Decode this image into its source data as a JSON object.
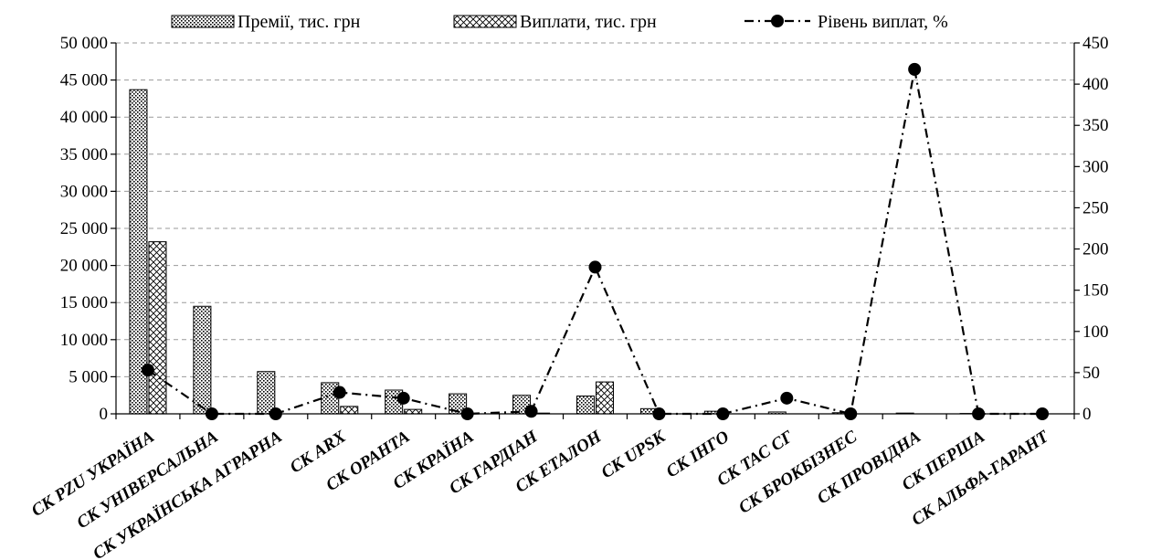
{
  "chart_data": {
    "type": "bar",
    "categories": [
      "СК PZU УКРАЇНА",
      "СК УНІВЕРСАЛЬНА",
      "СК УКРАЇНСЬКА АГРАРНА",
      "СК ARX",
      "СК ОРАНТА",
      "СК КРАЇНА",
      "СК ГАРДІАН",
      "СК ЕТАЛОН",
      "СК UPSK",
      "СК ІНГО",
      "СК ТАС СГ",
      "СК БРОКБІЗНЕС",
      "СК ПРОВІДНА",
      "СК ПЕРША",
      "СК АЛЬФА-ГАРАНТ"
    ],
    "series": [
      {
        "name": "Премії, тис. грн",
        "kind": "bar",
        "axis": "left",
        "values": [
          43700,
          14500,
          5700,
          4200,
          3200,
          2700,
          2500,
          2400,
          700,
          350,
          250,
          150,
          100,
          50,
          0
        ]
      },
      {
        "name": "Виплати, тис. грн",
        "kind": "bar",
        "axis": "left",
        "values": [
          23200,
          0,
          0,
          1000,
          600,
          0,
          100,
          4300,
          0,
          0,
          0,
          0,
          0,
          0,
          0
        ]
      },
      {
        "name": "Рівень виплат, %",
        "kind": "line",
        "axis": "right",
        "values": [
          53,
          0,
          0,
          26,
          19,
          0,
          3,
          178,
          0,
          0,
          19,
          0,
          418,
          0,
          0
        ]
      }
    ],
    "ylim_left": [
      0,
      50000
    ],
    "yticks_left": [
      "0",
      "5 000",
      "10 000",
      "15 000",
      "20 000",
      "25 000",
      "30 000",
      "35 000",
      "40 000",
      "45 000",
      "50 000"
    ],
    "ylim_right": [
      0,
      450
    ],
    "yticks_right": [
      "0",
      "50",
      "100",
      "150",
      "200",
      "250",
      "300",
      "350",
      "400",
      "450"
    ],
    "grid": true,
    "legend_position": "top"
  }
}
